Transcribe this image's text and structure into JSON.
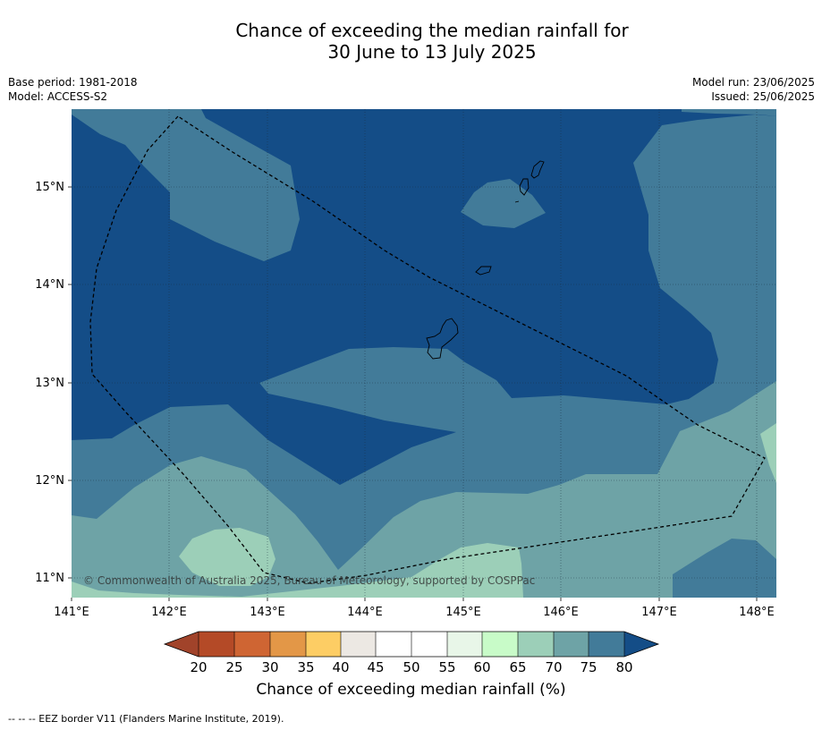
{
  "title": {
    "line1": "Chance of exceeding the median rainfall for",
    "line2": "30 June to 13 July 2025"
  },
  "meta": {
    "base_period": "Base period: 1981-2018",
    "model": "Model: ACCESS-S2",
    "model_run": "Model run: 23/06/2025",
    "issued": "Issued: 25/06/2025"
  },
  "map": {
    "lon_labels": [
      "141°E",
      "142°E",
      "143°E",
      "144°E",
      "145°E",
      "146°E",
      "147°E",
      "148°E"
    ],
    "lat_labels": [
      "15°N",
      "14°N",
      "13°N",
      "12°N",
      "11°N"
    ],
    "copyright": "© Commonwealth of Australia 2025, Bureau of Meteorology, supported by COSPPac",
    "colors": {
      "c80plus": "#144d87",
      "c75_80": "#427b99",
      "c70_75": "#6ea3a6",
      "c65_70": "#9ccfb8"
    }
  },
  "colorbar": {
    "ticks": [
      "20",
      "25",
      "30",
      "35",
      "40",
      "45",
      "50",
      "55",
      "60",
      "65",
      "70",
      "75",
      "80"
    ],
    "colors": [
      "#a1432a",
      "#b44a27",
      "#cf6533",
      "#e39747",
      "#fdcd64",
      "#ece8e3",
      "#ffffff",
      "#ffffff",
      "#e8f6e8",
      "#c8fbc8",
      "#9ccfb8",
      "#6ea3a6",
      "#427b99",
      "#144d87"
    ],
    "label": "Chance of exceeding median rainfall (%)"
  },
  "legend_footer": "--  --  -- EEZ border V11 (Flanders Marine Institute, 2019)."
}
